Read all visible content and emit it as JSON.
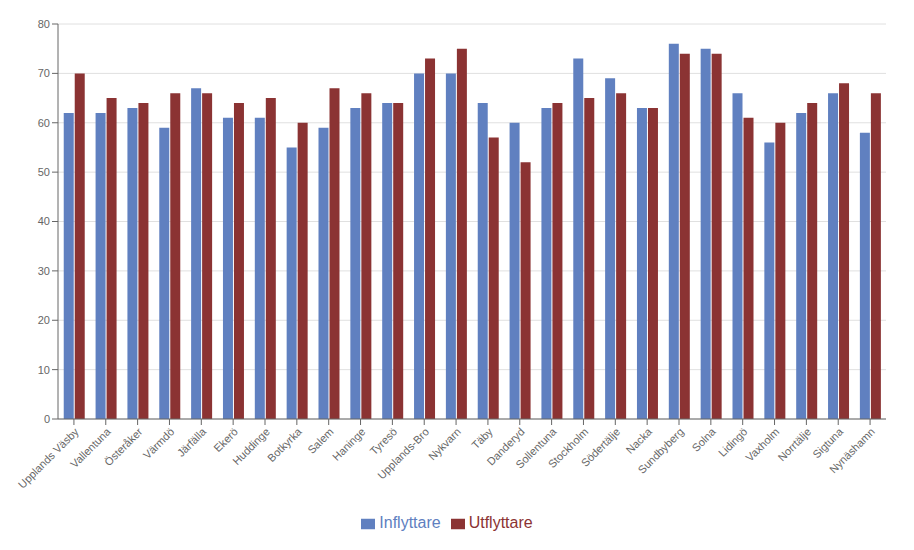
{
  "chart_data": {
    "type": "bar",
    "categories": [
      "Upplands Väsby",
      "Vallentuna",
      "Österåker",
      "Värmdö",
      "Järfälla",
      "Ekerö",
      "Huddinge",
      "Botkyrka",
      "Salem",
      "Haninge",
      "Tyresö",
      "Upplands-Bro",
      "Nykvarn",
      "Täby",
      "Danderyd",
      "Sollentuna",
      "Stockholm",
      "Södertälje",
      "Nacka",
      "Sundbyberg",
      "Solna",
      "Lidingö",
      "Vaxholm",
      "Norrtälje",
      "Sigtuna",
      "Nynäshamn"
    ],
    "series": [
      {
        "name": "Inflyttare",
        "color": "#6080C0",
        "values": [
          62,
          62,
          63,
          59,
          67,
          61,
          61,
          55,
          59,
          63,
          64,
          70,
          70,
          64,
          60,
          63,
          73,
          69,
          63,
          76,
          75,
          66,
          56,
          62,
          66,
          58
        ]
      },
      {
        "name": "Utflyttare",
        "color": "#8B3333",
        "values": [
          70,
          65,
          64,
          66,
          66,
          64,
          65,
          60,
          67,
          66,
          64,
          73,
          75,
          57,
          52,
          64,
          65,
          66,
          63,
          74,
          74,
          61,
          60,
          64,
          68,
          66
        ]
      }
    ],
    "ylim": [
      0,
      80
    ],
    "yticks": [
      0,
      10,
      20,
      30,
      40,
      50,
      60,
      70,
      80
    ],
    "grid": true,
    "legend": "bottom"
  }
}
